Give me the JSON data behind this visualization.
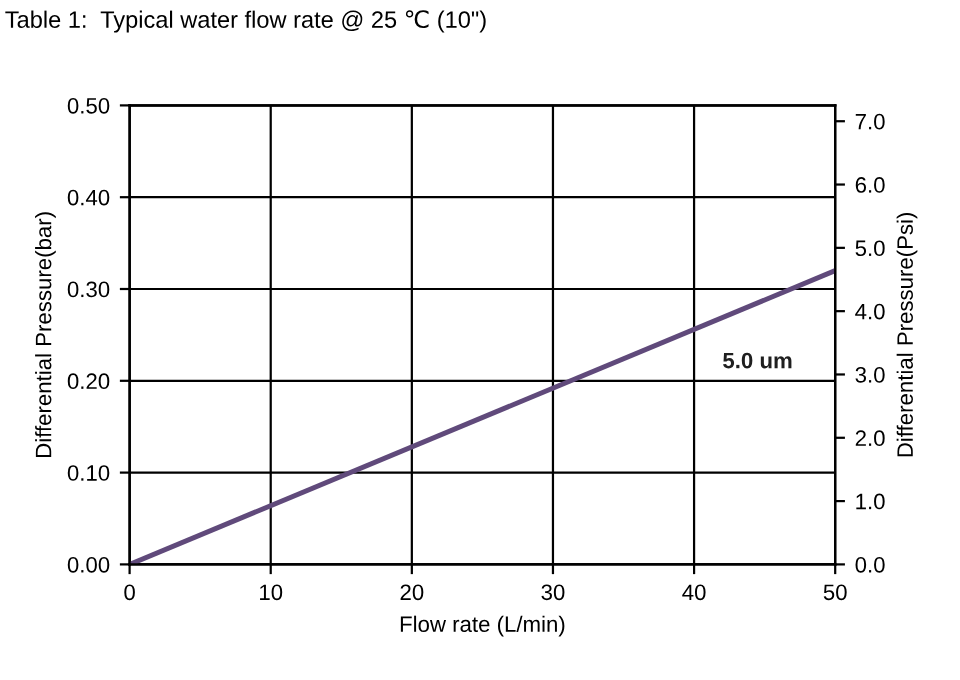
{
  "chart_data": {
    "type": "line",
    "title": "Table 1:  Typical water flow rate @ 25 ℃ (10\")",
    "xlabel": "Flow rate (L/min)",
    "ylabel": "Differential Pressure(bar)",
    "y2label": "Differential Pressure(Psi)",
    "x": [
      0,
      50
    ],
    "series": [
      {
        "color": "#604a7b",
        "values": [
          0,
          0.32
        ]
      }
    ],
    "xlim": [
      0,
      50
    ],
    "xticks": [
      0,
      10,
      20,
      30,
      40,
      50
    ],
    "ylim": [
      0,
      0.5
    ],
    "yticks": [
      {
        "value": 0,
        "label": "0.00"
      },
      {
        "value": 0.1,
        "label": "0.10"
      },
      {
        "value": 0.2,
        "label": "0.20"
      },
      {
        "value": 0.3,
        "label": "0.30"
      },
      {
        "value": 0.4,
        "label": "0.40"
      },
      {
        "value": 0.5,
        "label": "0.50"
      }
    ],
    "y2lim": [
      0,
      7.25
    ],
    "y2ticks": [
      {
        "value": 0,
        "label": "0.0"
      },
      {
        "value": 1,
        "label": "1.0"
      },
      {
        "value": 2,
        "label": "2.0"
      },
      {
        "value": 3,
        "label": "3.0"
      },
      {
        "value": 4,
        "label": "4.0"
      },
      {
        "value": 5,
        "label": "5.0"
      },
      {
        "value": 6,
        "label": "6.0"
      },
      {
        "value": 7,
        "label": "7.0"
      }
    ],
    "annotations": [
      "5.0 um"
    ],
    "grid": true,
    "marker": "none",
    "line_style": "solid"
  }
}
